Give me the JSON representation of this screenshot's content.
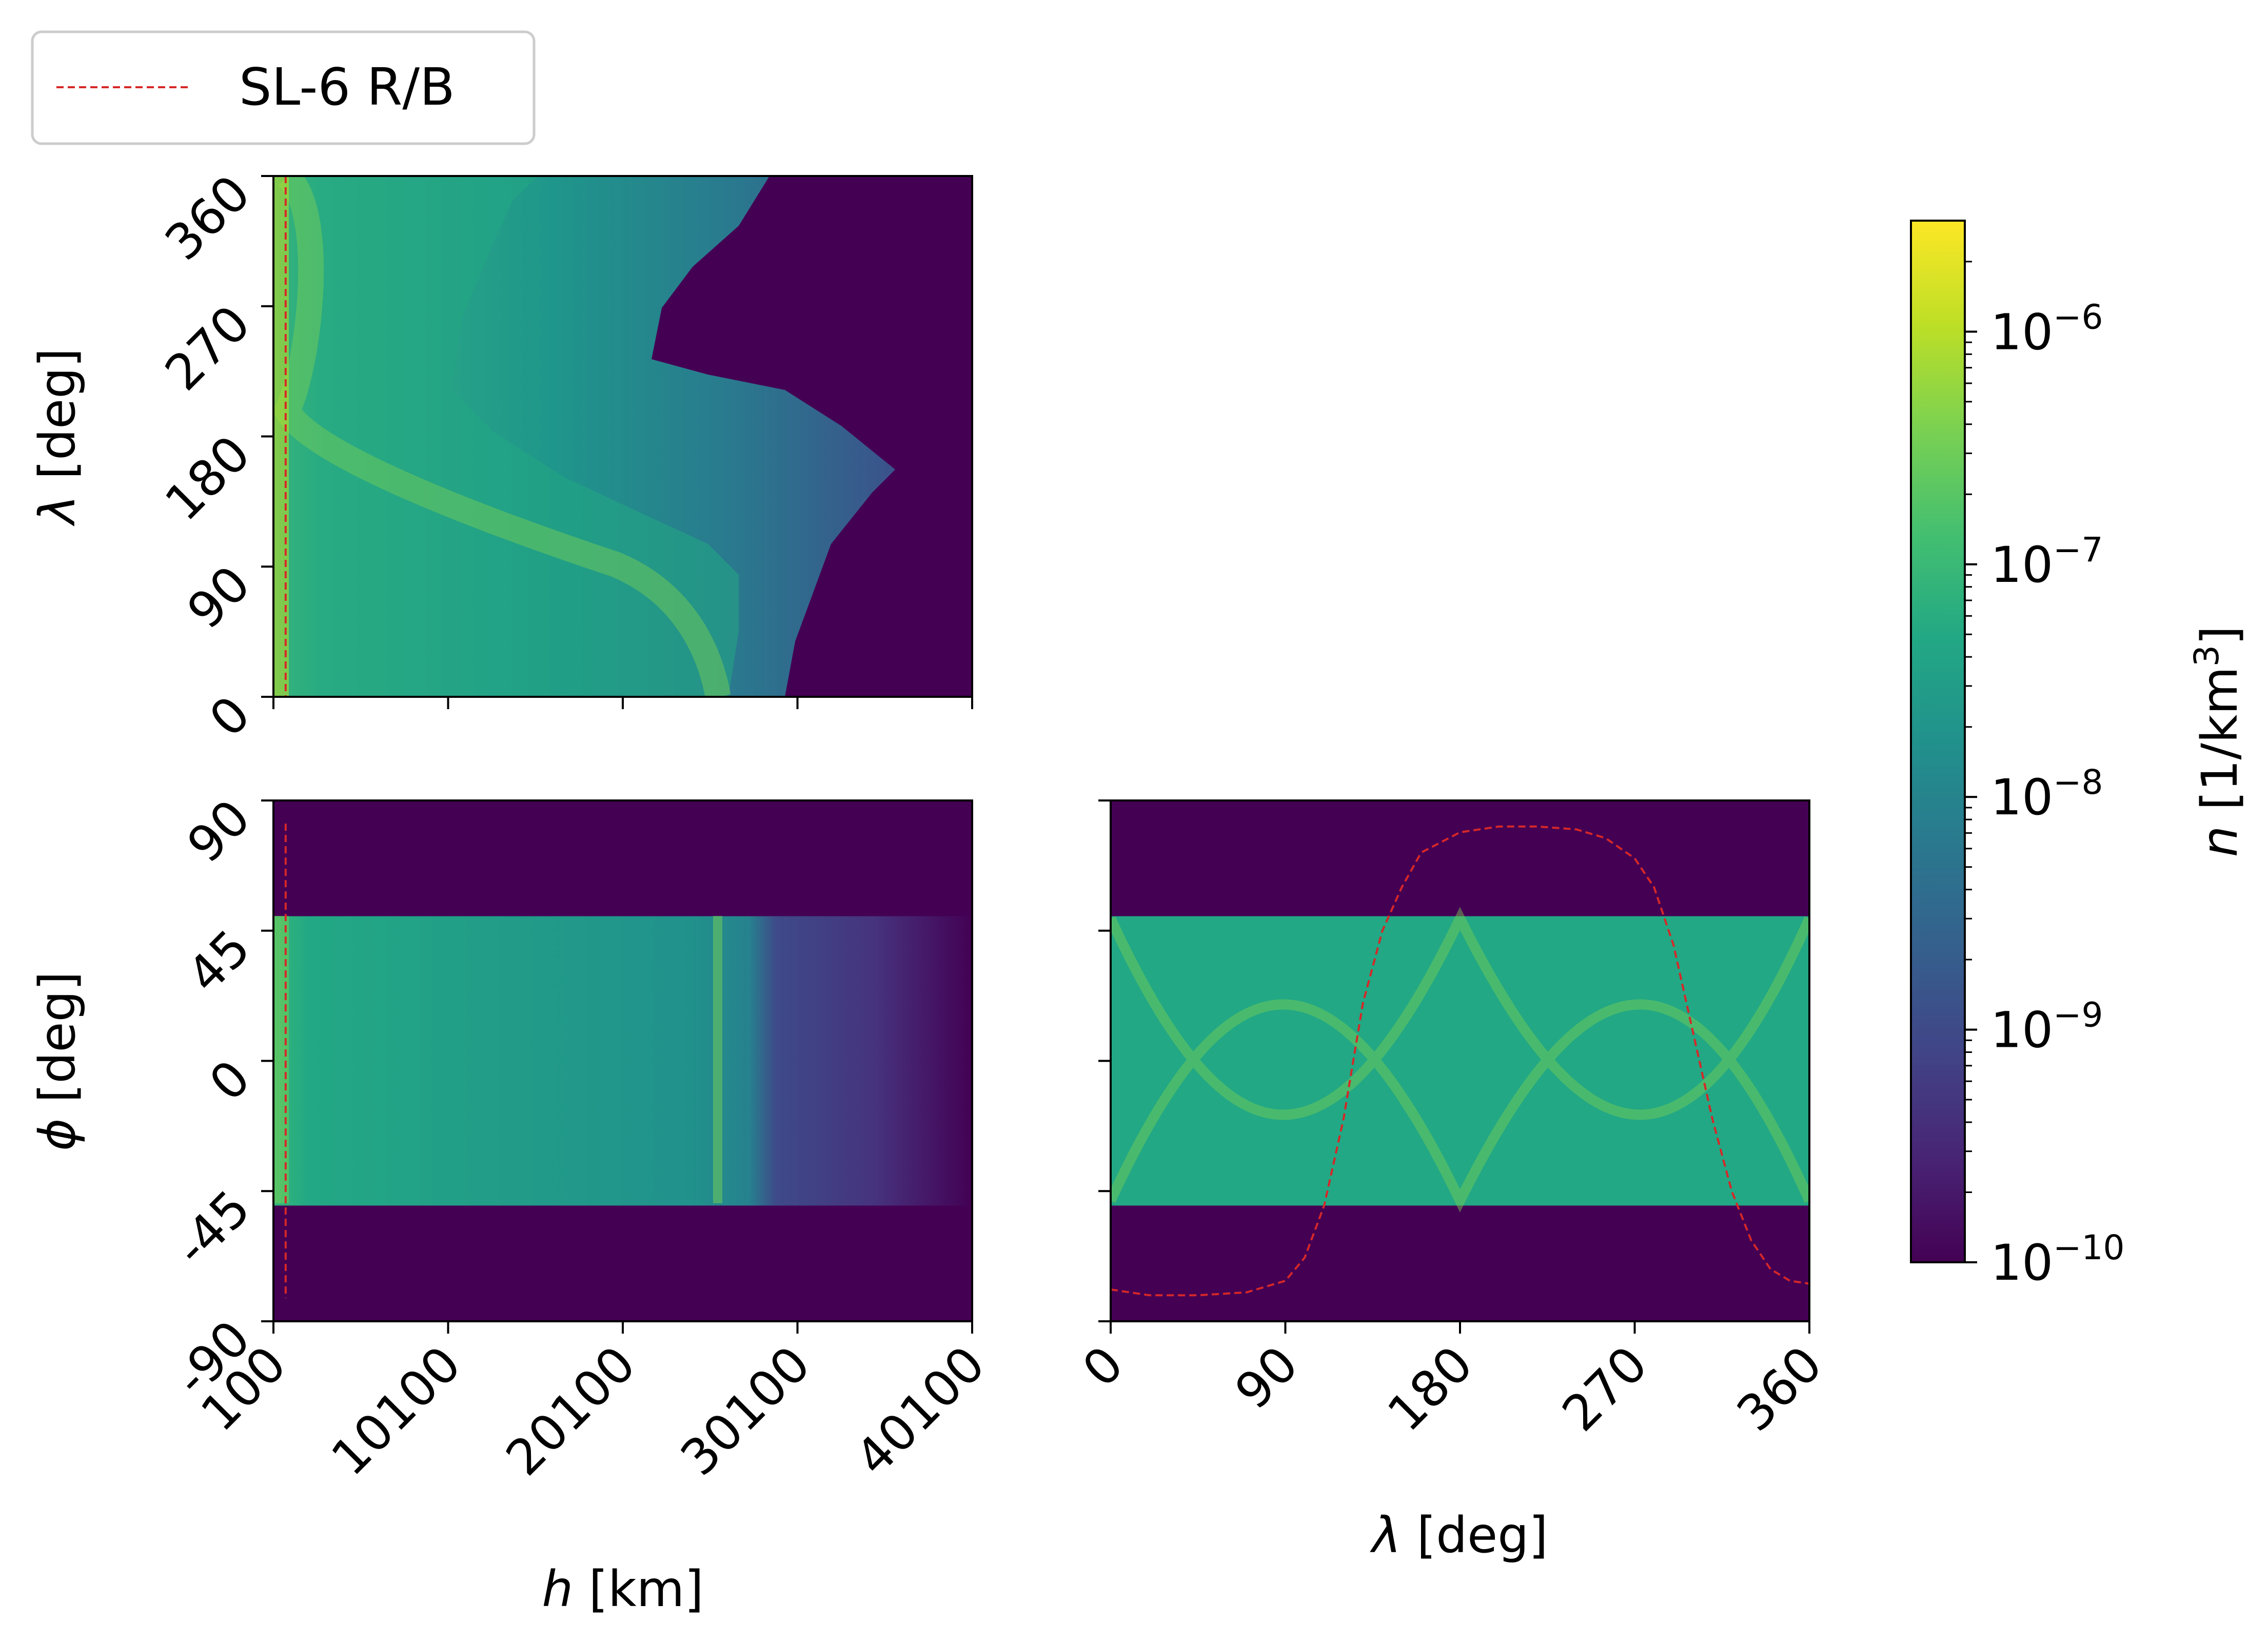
{
  "legend": {
    "entries": [
      {
        "label": "SL-6 R/B",
        "color": "#d62728",
        "style": "dashed"
      }
    ],
    "placement": "top-left"
  },
  "colorbar": {
    "label": "n [1/km³]",
    "label_var": "n",
    "label_unit": " [1/km",
    "label_exp": "3",
    "label_close": "]",
    "scale": "log",
    "range": [
      1e-10,
      3e-06
    ],
    "tick_values": [
      1e-10,
      1e-09,
      1e-08,
      1e-07,
      1e-06
    ],
    "tick_base": "10",
    "tick_exponents": [
      "−10",
      "−9",
      "−8",
      "−7",
      "−6"
    ],
    "colormap": "viridis"
  },
  "chart_data": [
    {
      "id": "h-lambda",
      "type": "heatmap",
      "xlabel": "",
      "ylabel": "λ [deg]",
      "ylabel_var": "λ",
      "ylabel_unit": " [deg]",
      "xlim": [
        100,
        40100
      ],
      "ylim": [
        0,
        360
      ],
      "xticks": [
        100,
        10100,
        20100,
        30100,
        40100
      ],
      "xtick_labels": [],
      "yticks": [
        0,
        90,
        180,
        270,
        360
      ],
      "ytick_labels": [
        "0",
        "90",
        "180",
        "270",
        "360"
      ],
      "reference_line": {
        "series": "SL-6 R/B",
        "orientation": "vertical",
        "x": 800
      }
    },
    {
      "id": "h-phi",
      "type": "heatmap",
      "xlabel": "h [km]",
      "ylabel": "ϕ [deg]",
      "xlabel_var": "h",
      "xlabel_unit": " [km]",
      "ylabel_var": "ϕ",
      "ylabel_unit": " [deg]",
      "xlim": [
        100,
        40100
      ],
      "ylim": [
        -90,
        90
      ],
      "xticks": [
        100,
        10100,
        20100,
        30100,
        40100
      ],
      "xtick_labels": [
        "100",
        "10100",
        "20100",
        "30100",
        "40100"
      ],
      "yticks": [
        -90,
        -45,
        0,
        45,
        90
      ],
      "ytick_labels": [
        "-90",
        "-45",
        "0",
        "45",
        "90"
      ],
      "band_phi": [
        -50,
        50
      ],
      "reference_line": {
        "series": "SL-6 R/B",
        "orientation": "vertical",
        "x": 800,
        "y_range": [
          -82,
          82
        ]
      }
    },
    {
      "id": "lambda-phi",
      "type": "heatmap",
      "xlabel": "λ [deg]",
      "ylabel": "",
      "xlabel_var": "λ",
      "xlabel_unit": " [deg]",
      "xlim": [
        0,
        360
      ],
      "ylim": [
        -90,
        90
      ],
      "xticks": [
        0,
        90,
        180,
        270,
        360
      ],
      "xtick_labels": [
        "0",
        "90",
        "180",
        "270",
        "360"
      ],
      "yticks": [
        -90,
        -45,
        0,
        45,
        90
      ],
      "ytick_labels": [],
      "band_phi": [
        -50,
        50
      ],
      "reference_curve": {
        "series": "SL-6 R/B",
        "x": [
          0,
          20,
          45,
          70,
          90,
          100,
          110,
          120,
          130,
          140,
          150,
          160,
          180,
          200,
          220,
          240,
          255,
          270,
          280,
          290,
          300,
          310,
          320,
          330,
          340,
          350,
          360
        ],
        "y": [
          -79,
          -81,
          -81,
          -80,
          -76,
          -68,
          -50,
          -20,
          20,
          45,
          60,
          72,
          79,
          81,
          81,
          80,
          77,
          70,
          60,
          40,
          10,
          -20,
          -45,
          -62,
          -72,
          -76,
          -77
        ]
      }
    }
  ]
}
